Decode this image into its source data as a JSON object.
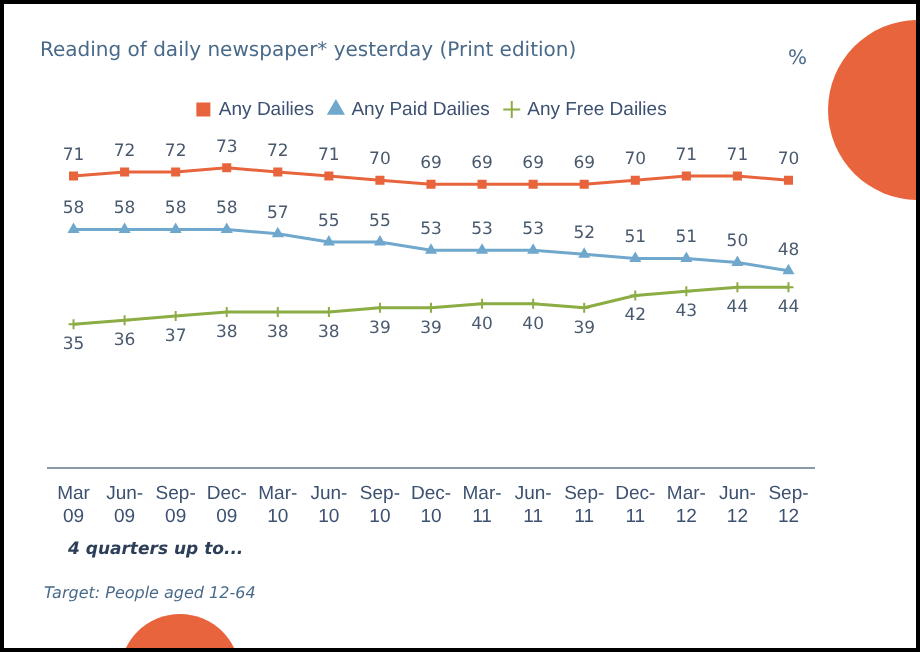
{
  "chart_data": {
    "type": "line",
    "title": "Reading of daily newspaper* yesterday (Print edition)",
    "categories": [
      "Mar 09",
      "Jun-09",
      "Sep-09",
      "Dec-09",
      "Mar-10",
      "Jun-10",
      "Sep-10",
      "Dec-10",
      "Mar-11",
      "Jun-11",
      "Sep-11",
      "Dec-11",
      "Mar-12",
      "Jun-12",
      "Sep-12"
    ],
    "series": [
      {
        "name": "Any Dailies",
        "color": "#e8643c",
        "marker": "square",
        "values": [
          71,
          72,
          72,
          73,
          72,
          71,
          70,
          69,
          69,
          69,
          69,
          70,
          71,
          71,
          70
        ]
      },
      {
        "name": "Any Paid Dailies",
        "color": "#6fa8cc",
        "marker": "triangle",
        "values": [
          58,
          58,
          58,
          58,
          57,
          55,
          55,
          53,
          53,
          53,
          52,
          51,
          51,
          50,
          48
        ]
      },
      {
        "name": "Any Free Dailies",
        "color": "#8cac44",
        "marker": "cross",
        "values": [
          35,
          36,
          37,
          38,
          38,
          38,
          39,
          39,
          40,
          40,
          39,
          42,
          43,
          44,
          44
        ]
      }
    ],
    "data_labels": true,
    "legend": "top",
    "grid": false,
    "annotations": [
      "%",
      "4 quarters up to...",
      "Target: People aged 12-64"
    ]
  }
}
